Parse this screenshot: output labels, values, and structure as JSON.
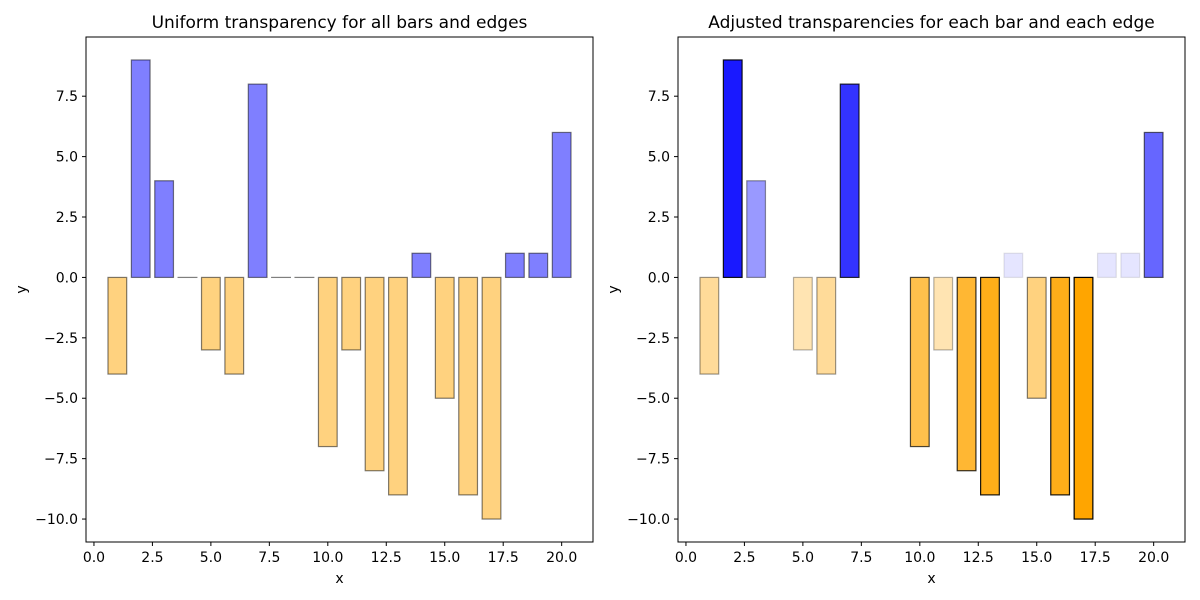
{
  "chart_data": [
    {
      "type": "bar",
      "title": "Uniform transparency for all bars and edges",
      "xlabel": "x",
      "ylabel": "y",
      "x": [
        1,
        2,
        3,
        4,
        5,
        6,
        7,
        8,
        9,
        10,
        11,
        12,
        13,
        14,
        15,
        16,
        17,
        18,
        19,
        20
      ],
      "values": [
        -4,
        9,
        4,
        0,
        -3,
        -4,
        8,
        0,
        0,
        -7,
        -3,
        -8,
        -9,
        1,
        -5,
        -9,
        -10,
        1,
        1,
        6
      ],
      "xlim": [
        -0.34,
        21.34
      ],
      "ylim": [
        -10.95,
        9.95
      ],
      "xticks": [
        "0.0",
        "2.5",
        "5.0",
        "7.5",
        "10.0",
        "12.5",
        "15.0",
        "17.5",
        "20.0"
      ],
      "yticks": [
        "−10.0",
        "−7.5",
        "−5.0",
        "−2.5",
        "0.0",
        "2.5",
        "5.0",
        "7.5"
      ],
      "positive_color": "#0000ff",
      "negative_color": "#ffa500",
      "face_alpha": "uniform 0.5",
      "edge_alpha": "uniform 0.5",
      "grid": false
    },
    {
      "type": "bar",
      "title": "Adjusted transparencies for each bar and each edge",
      "xlabel": "x",
      "ylabel": "y",
      "x": [
        1,
        2,
        3,
        4,
        5,
        6,
        7,
        8,
        9,
        10,
        11,
        12,
        13,
        14,
        15,
        16,
        17,
        18,
        19,
        20
      ],
      "values": [
        -4,
        9,
        4,
        0,
        -3,
        -4,
        8,
        0,
        0,
        -7,
        -3,
        -8,
        -9,
        1,
        -5,
        -9,
        -10,
        1,
        1,
        6
      ],
      "xlim": [
        -0.34,
        21.34
      ],
      "ylim": [
        -10.95,
        9.95
      ],
      "xticks": [
        "0.0",
        "2.5",
        "5.0",
        "7.5",
        "10.0",
        "12.5",
        "15.0",
        "17.5",
        "20.0"
      ],
      "yticks": [
        "−10.0",
        "−7.5",
        "−5.0",
        "−2.5",
        "0.0",
        "2.5",
        "5.0",
        "7.5"
      ],
      "positive_color": "#0000ff",
      "negative_color": "#ffa500",
      "face_alpha": "proportional to |value|",
      "edge_alpha": "proportional to |value|",
      "grid": false
    }
  ]
}
